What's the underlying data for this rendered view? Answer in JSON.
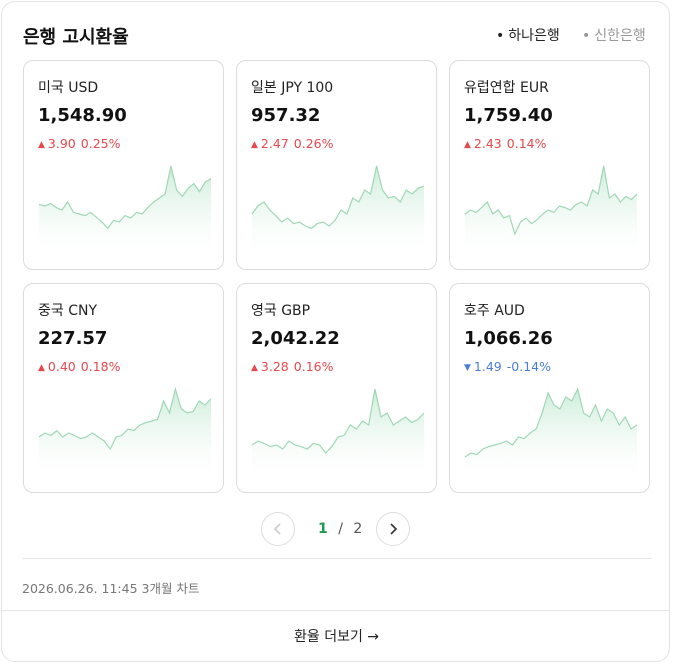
{
  "header": {
    "title": "은행 고시환율",
    "tabs": [
      {
        "label": "하나은행",
        "active": true
      },
      {
        "label": "신한은행",
        "active": false
      }
    ]
  },
  "cards": [
    {
      "name": "미국 USD",
      "price": "1,548.90",
      "change": "3.90",
      "rate": "0.25%",
      "direction": "up",
      "spark": [
        52,
        50,
        53,
        48,
        45,
        55,
        42,
        40,
        38,
        42,
        36,
        30,
        22,
        32,
        30,
        38,
        35,
        42,
        40,
        48,
        55,
        60,
        65,
        100,
        70,
        62,
        72,
        78,
        68,
        80,
        84
      ]
    },
    {
      "name": "일본 JPY 100",
      "price": "957.32",
      "change": "2.47",
      "rate": "0.26%",
      "direction": "up",
      "spark": [
        40,
        50,
        55,
        45,
        38,
        30,
        35,
        28,
        30,
        25,
        22,
        28,
        30,
        25,
        32,
        45,
        40,
        60,
        55,
        70,
        65,
        100,
        70,
        60,
        62,
        55,
        70,
        65,
        72,
        75
      ]
    },
    {
      "name": "유럽연합 EUR",
      "price": "1,759.40",
      "change": "2.43",
      "rate": "0.14%",
      "direction": "up",
      "spark": [
        40,
        45,
        42,
        48,
        55,
        40,
        45,
        35,
        38,
        15,
        30,
        35,
        28,
        33,
        40,
        45,
        42,
        50,
        48,
        45,
        52,
        55,
        50,
        70,
        65,
        100,
        60,
        65,
        55,
        62,
        58,
        65
      ]
    },
    {
      "name": "중국 CNY",
      "price": "227.57",
      "change": "0.40",
      "rate": "0.18%",
      "direction": "up",
      "spark": [
        40,
        45,
        42,
        48,
        40,
        45,
        42,
        38,
        40,
        45,
        40,
        35,
        25,
        40,
        42,
        50,
        48,
        55,
        58,
        60,
        62,
        85,
        70,
        100,
        75,
        70,
        72,
        85,
        80,
        88
      ]
    },
    {
      "name": "영국 GBP",
      "price": "2,042.22",
      "change": "3.28",
      "rate": "0.16%",
      "direction": "up",
      "spark": [
        30,
        35,
        32,
        28,
        30,
        25,
        35,
        30,
        28,
        25,
        32,
        30,
        20,
        28,
        40,
        42,
        55,
        50,
        60,
        55,
        100,
        65,
        70,
        55,
        60,
        65,
        58,
        62,
        70
      ]
    },
    {
      "name": "호주 AUD",
      "price": "1,066.26",
      "change": "1.49",
      "rate": "-0.14%",
      "direction": "down",
      "spark": [
        15,
        20,
        18,
        25,
        28,
        30,
        32,
        35,
        30,
        40,
        38,
        45,
        50,
        70,
        95,
        80,
        75,
        90,
        85,
        100,
        70,
        65,
        80,
        60,
        75,
        70,
        55,
        65,
        50,
        55
      ]
    }
  ],
  "pagination": {
    "current": "1",
    "separator": "/",
    "total": "2"
  },
  "footer": {
    "timestamp": "2026.06.26. 11:45 3개월 차트",
    "more": "환율 더보기 →"
  }
}
